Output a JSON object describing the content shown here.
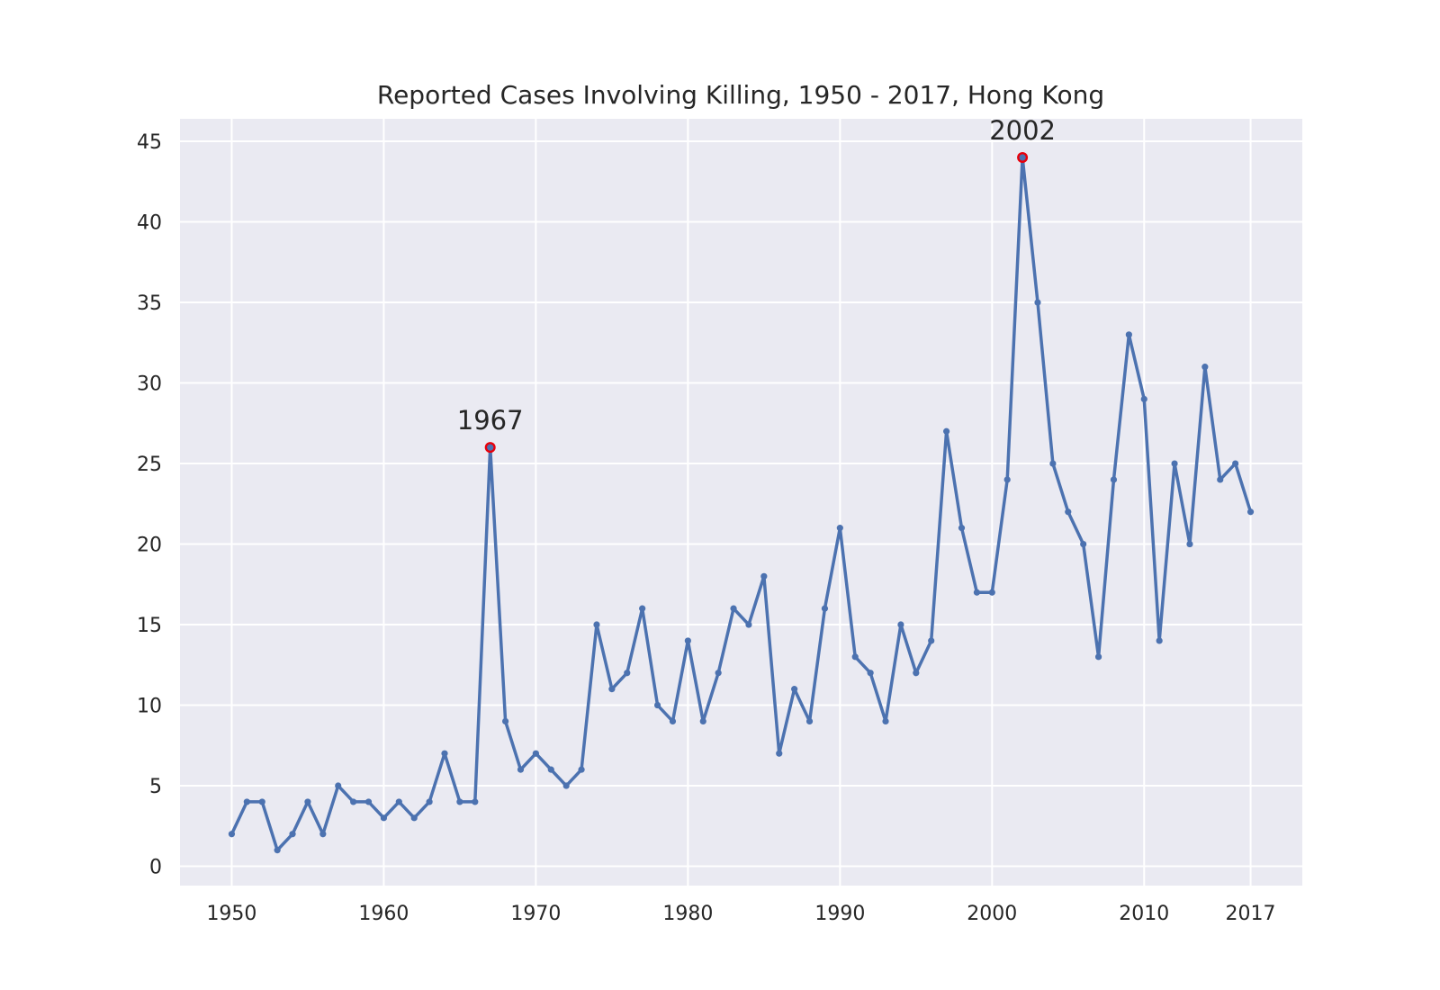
{
  "chart_data": {
    "type": "line",
    "title": "Reported Cases Involving Killing, 1950 - 2017, Hong Kong",
    "xlabel": "",
    "ylabel": "",
    "xlim": [
      1946.6,
      2020.4
    ],
    "ylim": [
      -1.2,
      46.4
    ],
    "grid": true,
    "x_ticks": [
      1950,
      1960,
      1970,
      1980,
      1990,
      2000,
      2010,
      2017
    ],
    "y_ticks": [
      0,
      5,
      10,
      15,
      20,
      25,
      30,
      35,
      40,
      45
    ],
    "series": [
      {
        "x": [
          1950,
          1951,
          1952,
          1953,
          1954,
          1955,
          1956,
          1957,
          1958,
          1959,
          1960,
          1961,
          1962,
          1963,
          1964,
          1965,
          1966,
          1967,
          1968,
          1969,
          1970,
          1971,
          1972,
          1973,
          1974,
          1975,
          1976,
          1977,
          1978,
          1979,
          1980,
          1981,
          1982,
          1983,
          1984,
          1985,
          1986,
          1987,
          1988,
          1989,
          1990,
          1991,
          1992,
          1993,
          1994,
          1995,
          1996,
          1997,
          1998,
          1999,
          2000,
          2001,
          2002,
          2003,
          2004,
          2005,
          2006,
          2007,
          2008,
          2009,
          2010,
          2011,
          2012,
          2013,
          2014,
          2015,
          2016,
          2017
        ],
        "values": [
          2,
          4,
          4,
          1,
          2,
          4,
          2,
          5,
          4,
          4,
          3,
          4,
          3,
          4,
          7,
          4,
          4,
          26,
          9,
          6,
          7,
          6,
          5,
          6,
          15,
          11,
          12,
          16,
          10,
          9,
          14,
          9,
          12,
          16,
          15,
          18,
          7,
          11,
          9,
          16,
          21,
          13,
          12,
          9,
          15,
          12,
          14,
          27,
          21,
          17,
          17,
          24,
          44,
          35,
          25,
          22,
          20,
          13,
          24,
          33,
          29,
          14,
          25,
          20,
          31,
          24,
          25,
          22
        ]
      }
    ],
    "annotations": [
      {
        "label": "1967",
        "x": 1967,
        "y": 26
      },
      {
        "label": "2002",
        "x": 2002,
        "y": 44
      }
    ],
    "colors": {
      "line": "#4c72b0",
      "highlight": "#e8000b",
      "background": "#eaeaf2",
      "grid": "#ffffff",
      "text": "#262626"
    }
  }
}
